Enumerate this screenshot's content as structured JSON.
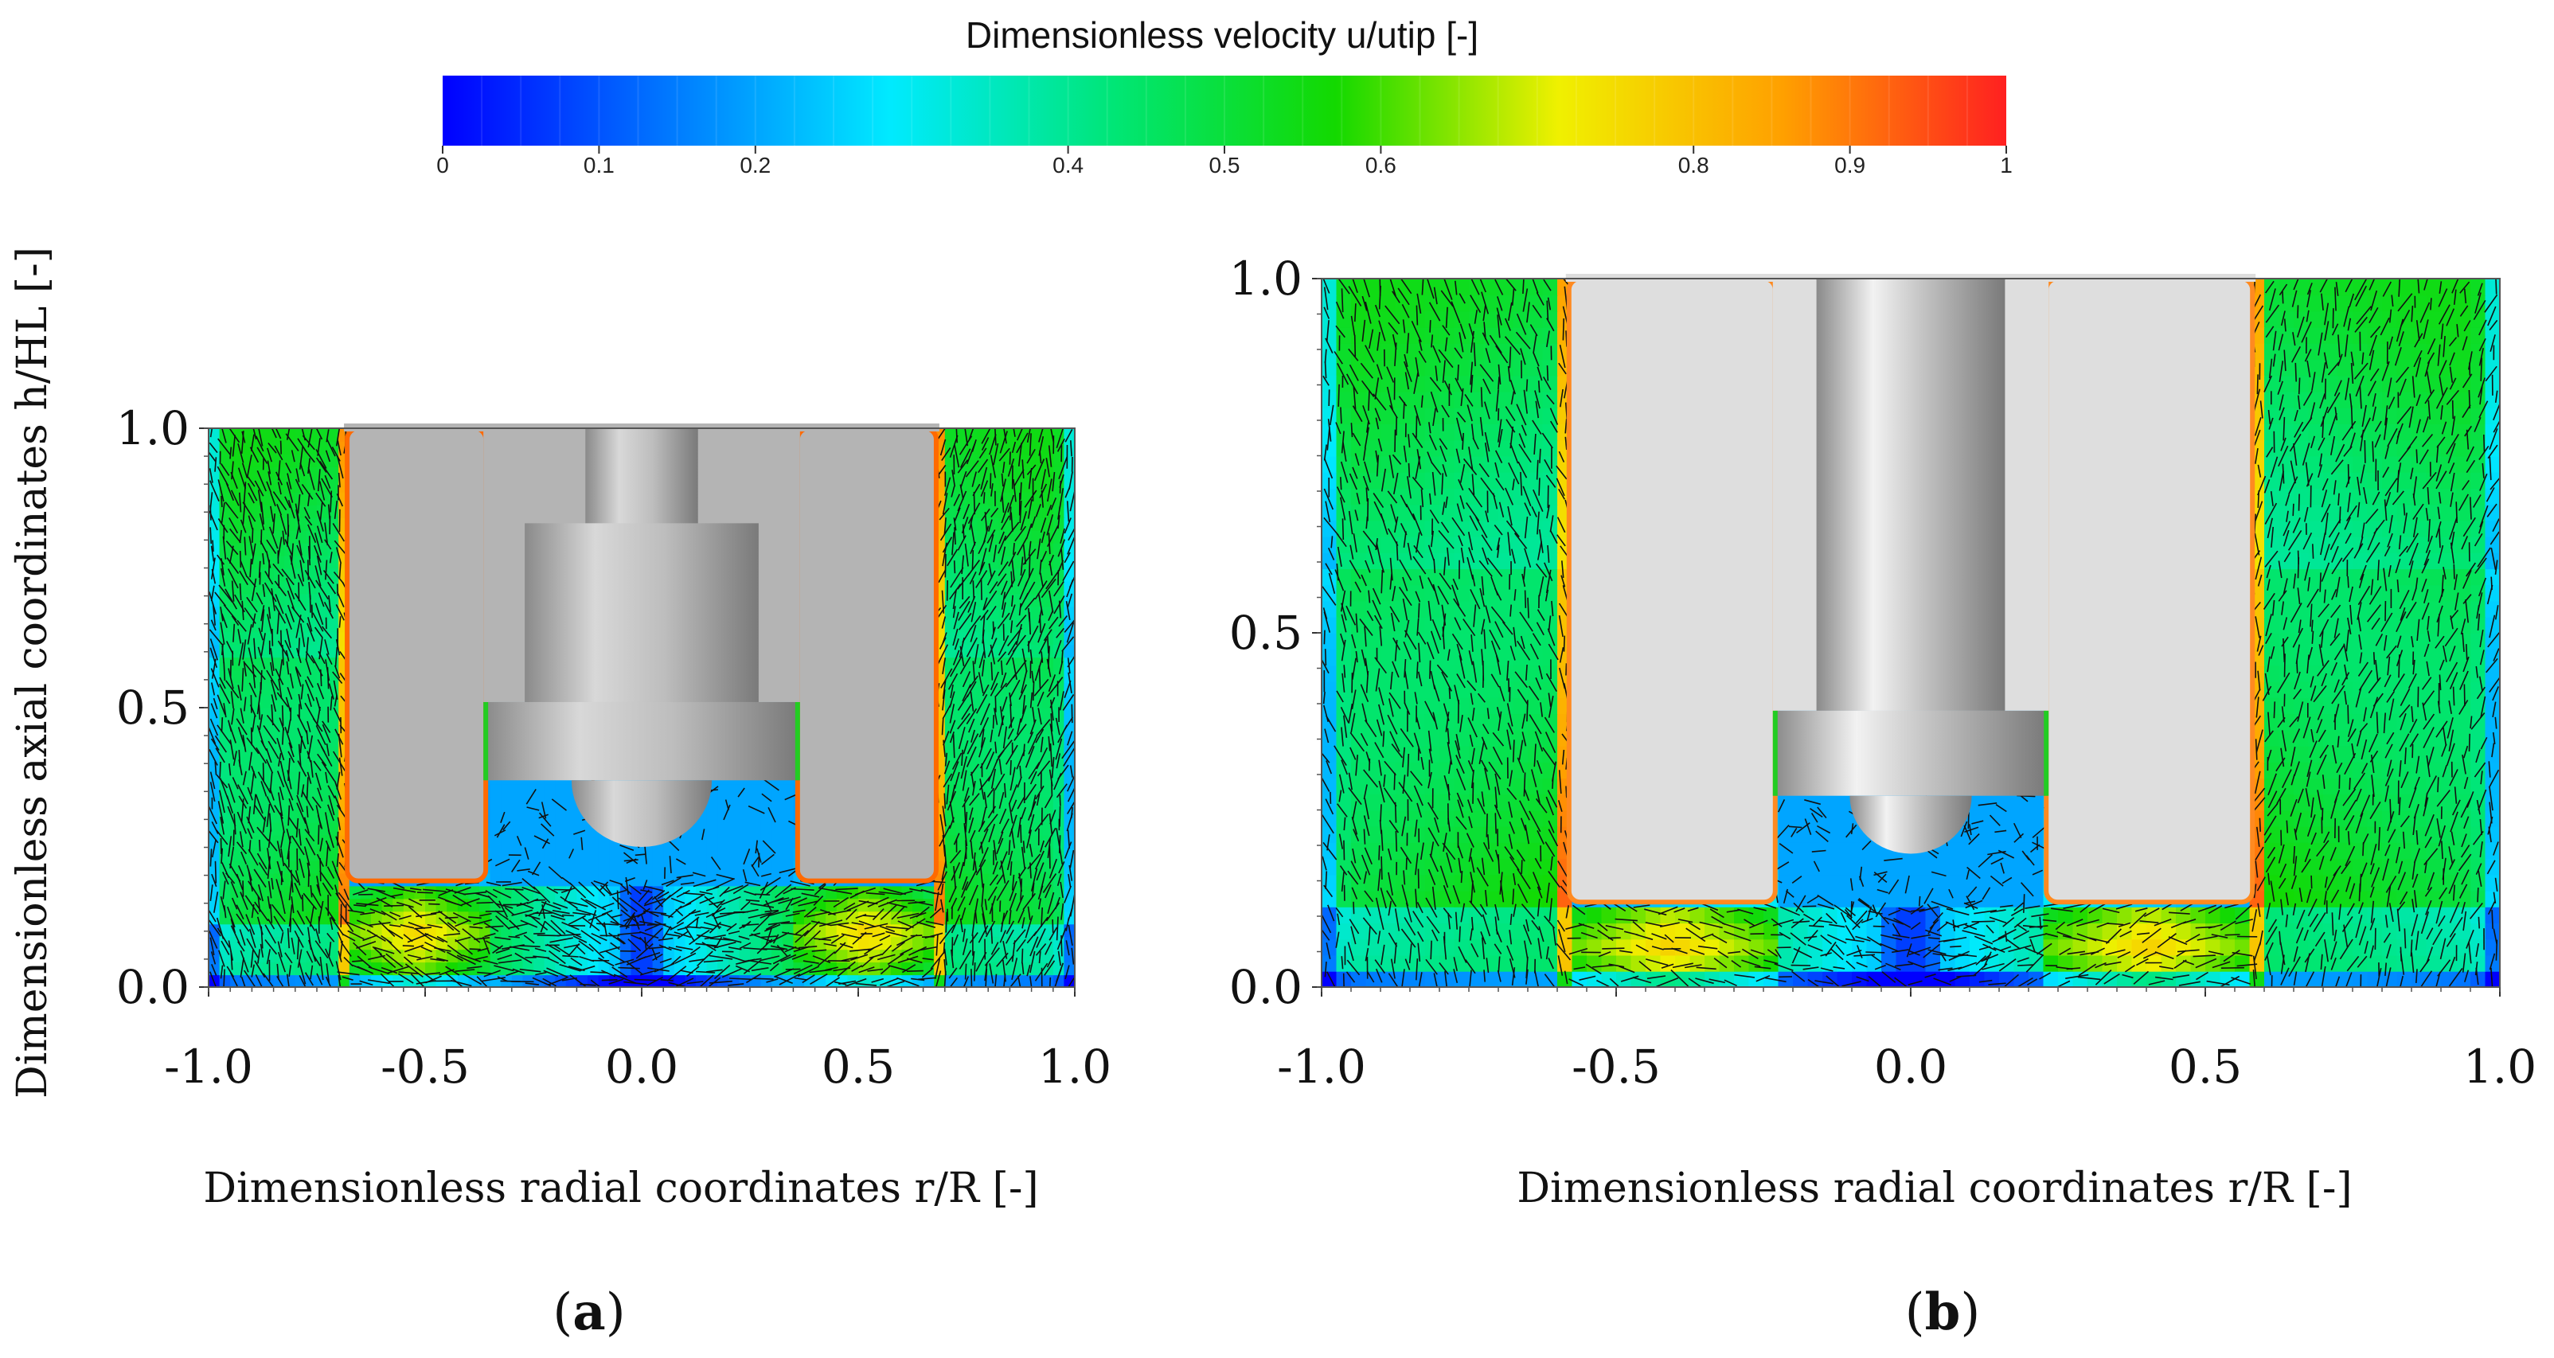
{
  "colorbar": {
    "title": "Dimensionless velocity u/utip [-]",
    "ticks": [
      "0",
      "0.1",
      "0.2",
      "0.4",
      "0.5",
      "0.6",
      "0.8",
      "0.9",
      "1"
    ],
    "tick_values": [
      0,
      0.1,
      0.2,
      0.4,
      0.5,
      0.6,
      0.8,
      0.9,
      1.0
    ],
    "range": [
      0,
      1
    ],
    "colors": [
      "#0000ff",
      "#0077ff",
      "#00eaff",
      "#00e676",
      "#13d900",
      "#f0f000",
      "#ffa000",
      "#ff2020"
    ]
  },
  "chart_data": [
    {
      "type": "heatmap",
      "panel_label": "(a)",
      "label_letter": "a",
      "xlabel": "Dimensionless radial coordinates r/R [-]",
      "ylabel": "Dimensionless axial coordinates h/HL [-]",
      "xticks": [
        "-1.0",
        "-0.5",
        "0.0",
        "0.5",
        "1.0"
      ],
      "yticks": [
        "0.0",
        "0.5",
        "1.0"
      ],
      "xlim": [
        -1.0,
        1.0
      ],
      "ylim": [
        0.0,
        1.0
      ],
      "baffle_inner_r": 0.68,
      "baffle_bottom_h": 0.19,
      "impeller_r": 0.36,
      "impeller_h": [
        0.37,
        0.51
      ],
      "shaft_r": 0.2,
      "hub_r": 0.27,
      "hub_h": [
        0.51,
        0.83
      ],
      "max_velocity_bottom": 0.8,
      "min_velocity_center": 0.0
    },
    {
      "type": "heatmap",
      "panel_label": "(b)",
      "label_letter": "b",
      "xlabel": "Dimensionless radial coordinates r/R [-]",
      "ylabel": "",
      "xticks": [
        "-1.0",
        "-0.5",
        "0.0",
        "0.5",
        "1.0"
      ],
      "yticks": [
        "0.0",
        "0.5",
        "1.0"
      ],
      "xlim": [
        -1.0,
        1.0
      ],
      "ylim": [
        0.0,
        1.0
      ],
      "baffle_inner_r": 0.58,
      "baffle_bottom_h": 0.12,
      "impeller_r": 0.23,
      "impeller_h": [
        0.27,
        0.39
      ],
      "shaft_r": 0.16,
      "hub_r": 0.16,
      "hub_h": [
        0.39,
        1.0
      ],
      "max_velocity_bottom": 0.8,
      "min_velocity_center": 0.0
    }
  ]
}
